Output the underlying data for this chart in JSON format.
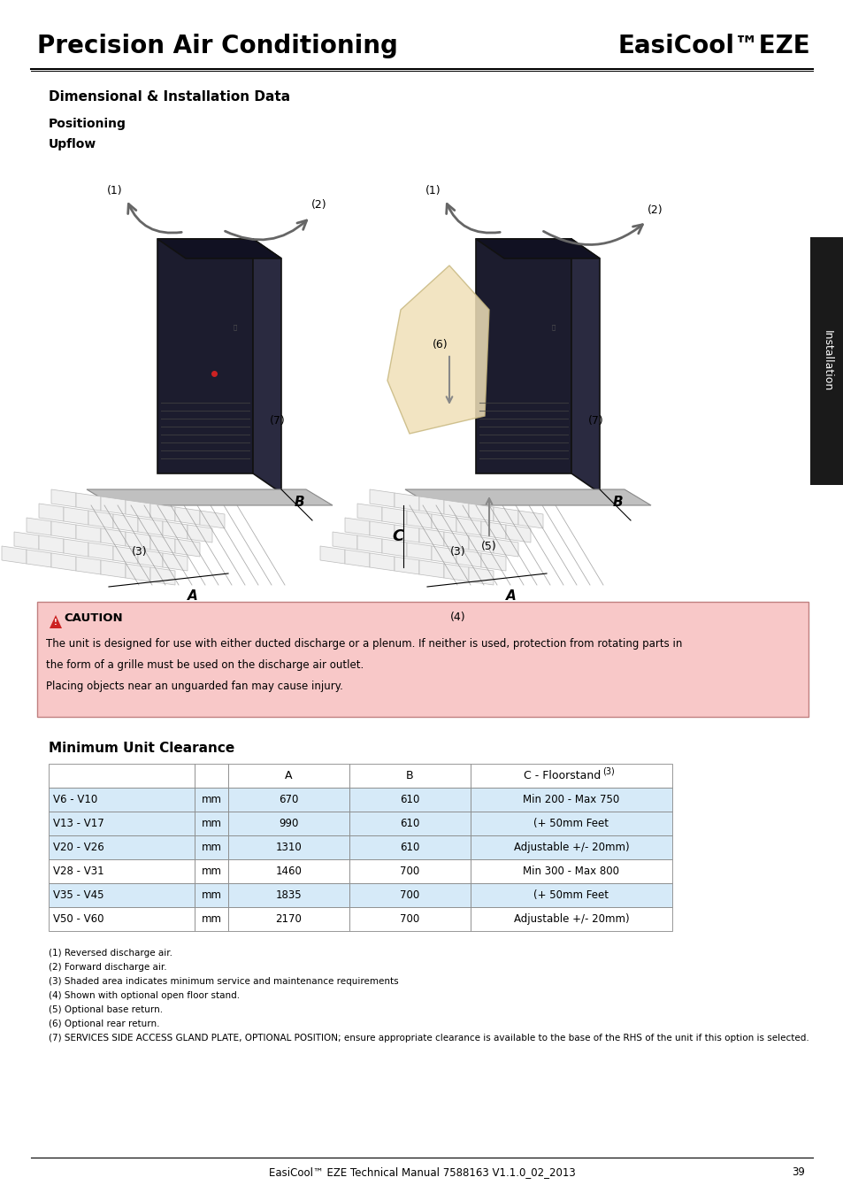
{
  "title_left": "Precision Air Conditioning",
  "title_right": "EasiCool™EZE",
  "section_title": "Dimensional & Installation Data",
  "subsection1": "Positioning",
  "subsection2": "Upflow",
  "caution_title": "CAUTION",
  "caution_text1": "The unit is designed for use with either ducted discharge or a plenum. If neither is used, protection from rotating parts in",
  "caution_text2": "the form of a grille must be used on the discharge air outlet.",
  "caution_text3": "Placing objects near an unguarded fan may cause injury.",
  "caution_bg": "#f8c8c8",
  "caution_border": "#c08080",
  "table_title": "Minimum Unit Clearance",
  "table_headers": [
    "",
    "",
    "A",
    "B",
    "C - Floorstand"
  ],
  "table_col3_super": "(3)",
  "table_rows": [
    [
      "V6 - V10",
      "mm",
      "670",
      "610",
      "Min 200 - Max 750"
    ],
    [
      "V13 - V17",
      "mm",
      "990",
      "610",
      "(+ 50mm Feet"
    ],
    [
      "V20 - V26",
      "mm",
      "1310",
      "610",
      "Adjustable +/- 20mm)"
    ],
    [
      "V28 - V31",
      "mm",
      "1460",
      "700",
      "Min 300 - Max 800"
    ],
    [
      "V35 - V45",
      "mm",
      "1835",
      "700",
      "(+ 50mm Feet"
    ],
    [
      "V50 - V60",
      "mm",
      "2170",
      "700",
      "Adjustable +/- 20mm)"
    ]
  ],
  "table_row_colors": [
    "#d6eaf8",
    "#d6eaf8",
    "#d6eaf8",
    "#ffffff",
    "#d6eaf8",
    "#ffffff"
  ],
  "footnotes": [
    "(1) Reversed discharge air.",
    "(2) Forward discharge air.",
    "(3) Shaded area indicates minimum service and maintenance requirements",
    "(4) Shown with optional open floor stand.",
    "(5) Optional base return.",
    "(6) Optional rear return.",
    "(7) SERVICES SIDE ACCESS GLAND PLATE, OPTIONAL POSITION; ensure appropriate clearance is available to the base of the RHS of the unit if this option is selected."
  ],
  "footer_text": "EasiCool™ EZE Technical Manual 7588163 V1.1.0_02_2013",
  "footer_page": "39",
  "sidebar_text": "Installation",
  "sidebar_bg": "#1a1a1a",
  "bg_color": "#ffffff"
}
